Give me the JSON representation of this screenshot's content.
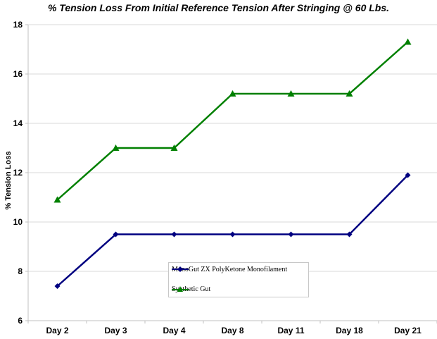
{
  "chart_data": {
    "type": "line",
    "title": "% Tension Loss From Initial Reference Tension After Stringing @ 60 Lbs.",
    "xlabel": "",
    "ylabel": "% Tension Loss",
    "categories": [
      "Day 2",
      "Day 3",
      "Day 4",
      "Day 8",
      "Day 11",
      "Day 18",
      "Day 21"
    ],
    "series": [
      {
        "name": "MonoGut ZX PolyKetone Monofilament",
        "color": "#000080",
        "marker": "diamond",
        "values": [
          7.4,
          9.5,
          9.5,
          9.5,
          9.5,
          9.5,
          11.9
        ]
      },
      {
        "name": "Synthetic Gut",
        "color": "#008000",
        "marker": "triangle",
        "values": [
          10.9,
          13.0,
          13.0,
          15.2,
          15.2,
          15.2,
          17.3
        ]
      }
    ],
    "ylim": [
      6,
      18
    ],
    "yticks": [
      6,
      8,
      10,
      12,
      14,
      16,
      18
    ],
    "grid": true,
    "legend_position": "inside-bottom-center"
  }
}
